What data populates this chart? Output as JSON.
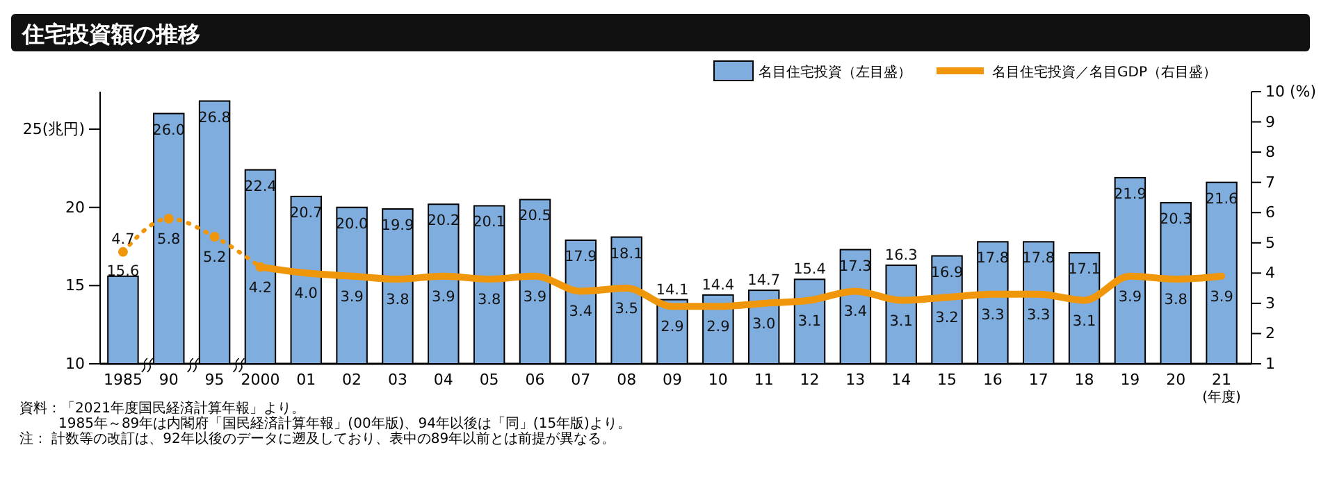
{
  "chart_data": {
    "type": "bar",
    "title": "住宅投資額の推移",
    "categories": [
      "1985",
      "90",
      "95",
      "2000",
      "01",
      "02",
      "03",
      "04",
      "05",
      "06",
      "07",
      "08",
      "09",
      "10",
      "11",
      "12",
      "13",
      "14",
      "15",
      "16",
      "17",
      "18",
      "19",
      "20",
      "21"
    ],
    "xlabel": "(年度)",
    "series": [
      {
        "name": "名目住宅投資（左目盛）",
        "color": "#7fadde",
        "values": [
          15.6,
          26.0,
          26.8,
          22.4,
          20.7,
          20.0,
          19.9,
          20.2,
          20.1,
          20.5,
          17.9,
          18.1,
          14.1,
          14.4,
          14.7,
          15.4,
          17.3,
          16.3,
          16.9,
          17.8,
          17.8,
          17.1,
          21.9,
          20.3,
          21.6
        ],
        "value_labels": [
          "15.6",
          "26.0",
          "26.8",
          "22.4",
          "20.7",
          "20.0",
          "19.9",
          "20.2",
          "20.1",
          "20.5",
          "17.9",
          "18.1",
          "14.1",
          "14.4",
          "14.7",
          "15.4",
          "17.3",
          "16.3",
          "16.9",
          "17.8",
          "17.8",
          "17.1",
          "21.9",
          "20.3",
          "21.6"
        ]
      },
      {
        "name": "名目住宅投資／名目GDP（右目盛）",
        "type": "line",
        "axis": "y2",
        "color": "#f0960a",
        "line_style": "solid",
        "values": [
          null,
          null,
          null,
          4.2,
          4.0,
          3.9,
          3.8,
          3.9,
          3.8,
          3.9,
          3.4,
          3.5,
          2.9,
          2.9,
          3.0,
          3.1,
          3.4,
          3.1,
          3.2,
          3.3,
          3.3,
          3.1,
          3.9,
          3.8,
          3.9
        ],
        "value_labels": [
          null,
          null,
          null,
          "4.2",
          "4.0",
          "3.9",
          "3.8",
          "3.9",
          "3.8",
          "3.9",
          "3.4",
          "3.5",
          "2.9",
          "2.9",
          "3.0",
          "3.1",
          "3.4",
          "3.1",
          "3.2",
          "3.3",
          "3.3",
          "3.1",
          "3.9",
          "3.8",
          "3.9"
        ]
      },
      {
        "type": "line",
        "axis": "y2",
        "color": "#f0960a",
        "line_style": "dotted",
        "marker": "circle",
        "values": [
          4.7,
          5.8,
          5.2,
          4.2,
          null,
          null,
          null,
          null,
          null,
          null,
          null,
          null,
          null,
          null,
          null,
          null,
          null,
          null,
          null,
          null,
          null,
          null,
          null,
          null,
          null
        ],
        "value_labels": [
          "4.7",
          "5.8",
          "5.2",
          null,
          null,
          null,
          null,
          null,
          null,
          null,
          null,
          null,
          null,
          null,
          null,
          null,
          null,
          null,
          null,
          null,
          null,
          null,
          null,
          null,
          null
        ]
      }
    ],
    "ylim": [
      10,
      27.4
    ],
    "yticks": [
      10,
      15,
      20,
      {
        "value": 25,
        "label": "25(兆円)"
      }
    ],
    "y2lim": [
      1,
      10
    ],
    "y2ticks": [
      1,
      2,
      3,
      4,
      5,
      6,
      7,
      8,
      9,
      {
        "value": 10,
        "label": "10 (%)"
      }
    ],
    "grid": false,
    "legend": "top right",
    "annotations": [
      "資料：「2021年度国民経済計算年報」より。",
      "1985年～89年は内閣府「国民経済計算年報」(00年版)、94年以後は「同」(15年版)より。",
      "注：  計数等の改訂は、92年以後のデータに遡及しており、表中の89年以前とは前提が異なる。"
    ]
  }
}
